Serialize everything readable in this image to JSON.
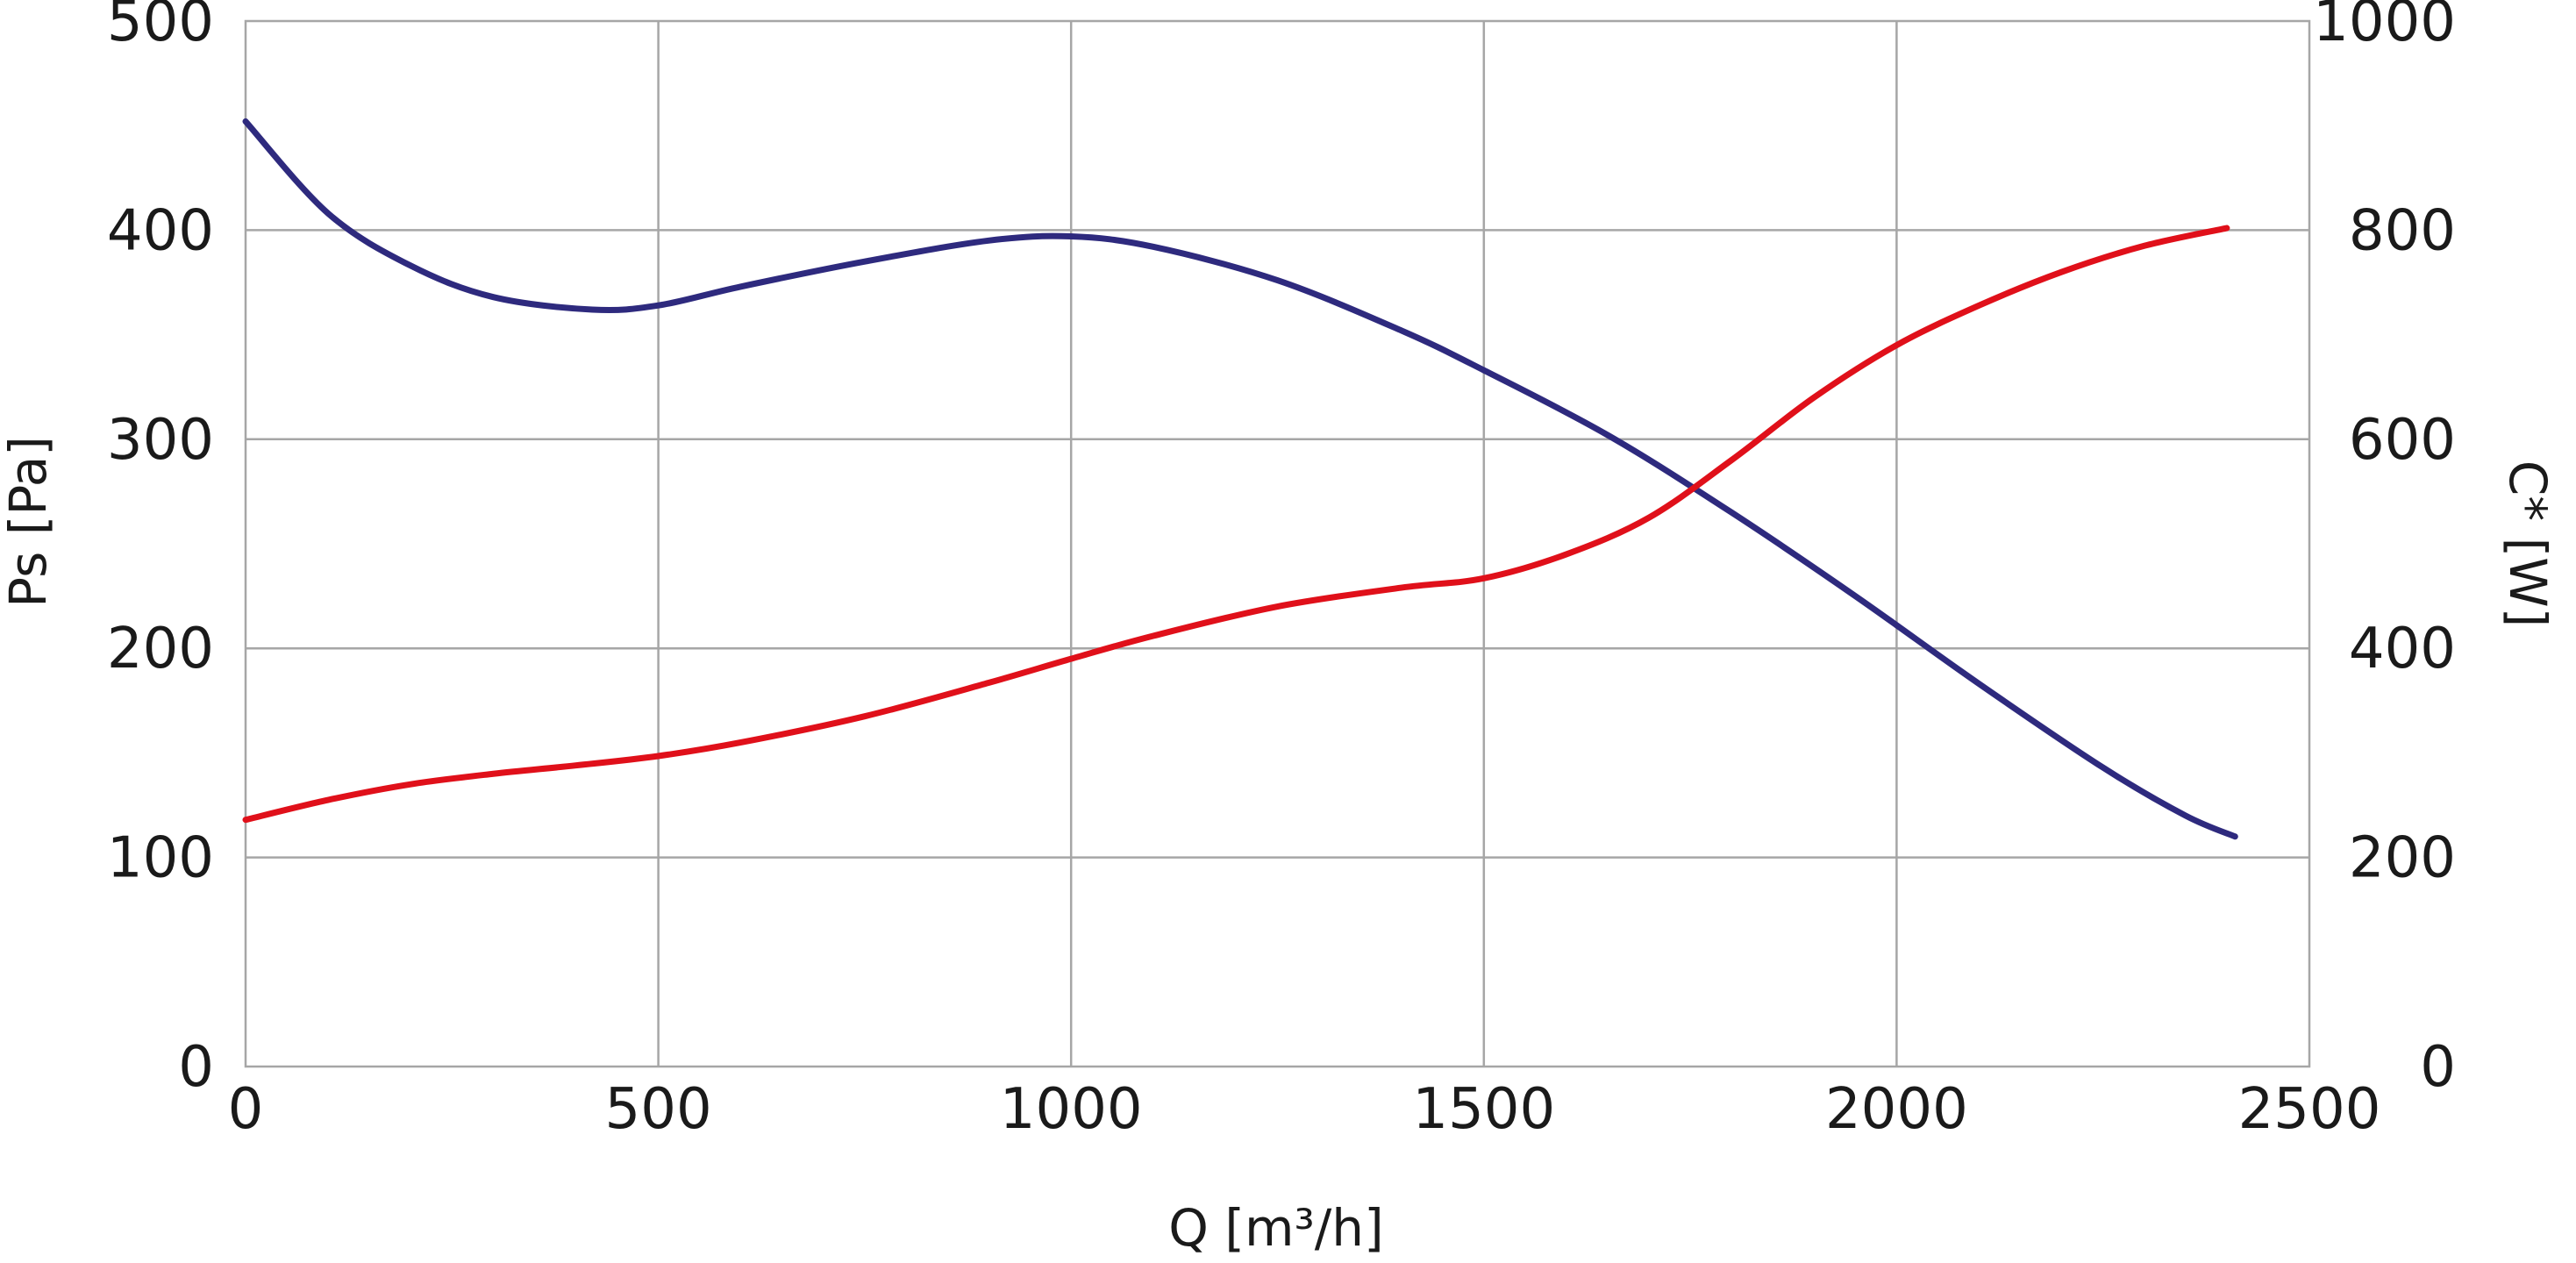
{
  "chart_data": {
    "type": "line",
    "title": "",
    "xlabel": "Q [m³/h]",
    "ylabel_left": "Ps [Pa]",
    "ylabel_right": "C* [W]",
    "xlim": [
      0,
      2500
    ],
    "ylim_left": [
      0,
      500
    ],
    "ylim_right": [
      0,
      1000
    ],
    "x_ticks": [
      "0",
      "500",
      "1000",
      "1500",
      "2000",
      "2500"
    ],
    "y_ticks_left": [
      "0",
      "100",
      "200",
      "300",
      "400",
      "500"
    ],
    "y_ticks_right": [
      "0",
      "200",
      "400",
      "600",
      "800",
      "1000"
    ],
    "grid": true,
    "legend": "none",
    "series": [
      {
        "key": "pressure",
        "axis": "left",
        "color": "#2e2a7e",
        "x": [
          0,
          100,
          200,
          300,
          420,
          500,
          600,
          750,
          900,
          1000,
          1100,
          1250,
          1400,
          1500,
          1650,
          1800,
          1950,
          2100,
          2250,
          2350,
          2410
        ],
        "y": [
          452,
          408,
          383,
          368,
          362,
          364,
          373,
          385,
          395,
          397,
          392,
          376,
          352,
          333,
          302,
          265,
          225,
          183,
          143,
          120,
          110
        ]
      },
      {
        "key": "power",
        "axis": "right",
        "color": "#e0101a",
        "x": [
          0,
          100,
          200,
          300,
          400,
          500,
          600,
          750,
          900,
          1000,
          1100,
          1250,
          1400,
          1500,
          1600,
          1700,
          1800,
          1900,
          2000,
          2100,
          2200,
          2300,
          2400
        ],
        "y": [
          236,
          255,
          270,
          280,
          288,
          297,
          310,
          335,
          367,
          390,
          412,
          440,
          458,
          467,
          490,
          525,
          580,
          640,
          690,
          728,
          760,
          785,
          802
        ]
      }
    ]
  }
}
